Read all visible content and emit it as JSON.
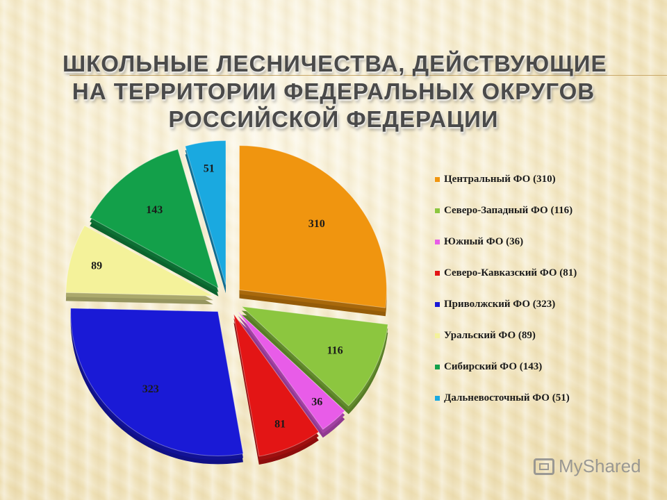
{
  "title": {
    "line1": "ШКОЛЬНЫЕ ЛЕСНИЧЕСТВА, ДЕЙСТВУЮЩИЕ",
    "line2": "НА ТЕРРИТОРИИ ФЕДЕРАЛЬНЫХ ОКРУГОВ",
    "line3": "РОССИЙСКОЙ ФЕДЕРАЦИИ"
  },
  "watermark": "MyShared",
  "chart_data": {
    "type": "pie",
    "title": "ШКОЛЬНЫЕ ЛЕСНИЧЕСТВА, ДЕЙСТВУЮЩИЕ НА ТЕРРИТОРИИ ФЕДЕРАЛЬНЫХ ОКРУГОВ РОССИЙСКОЙ ФЕДЕРАЦИИ",
    "legend_position": "right",
    "exploded": true,
    "style": "3d",
    "slices": [
      {
        "label": "Центральный ФО (310)",
        "value": 310,
        "color": "#f0950f"
      },
      {
        "label": "Северо-Западный ФО (116)",
        "value": 116,
        "color": "#8cc63f"
      },
      {
        "label": "Южный ФО (36)",
        "value": 36,
        "color": "#e85ce8"
      },
      {
        "label": "Северо-Кавказский ФО (81)",
        "value": 81,
        "color": "#e31515"
      },
      {
        "label": "Приволжский ФО (323)",
        "value": 323,
        "color": "#1a1ad6"
      },
      {
        "label": "Уральский ФО (89)",
        "value": 89,
        "color": "#f4f29a"
      },
      {
        "label": "Сибирский ФО (143)",
        "value": 143,
        "color": "#13a04a"
      },
      {
        "label": "Дальневосточный ФО (51)",
        "value": 51,
        "color": "#1aa9e0"
      }
    ]
  }
}
